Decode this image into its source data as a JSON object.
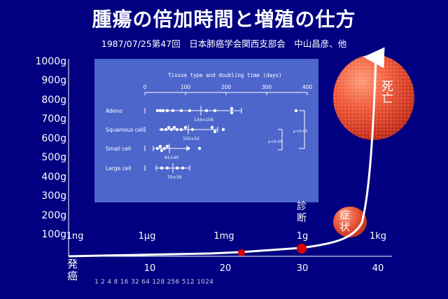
{
  "title": "腫瘍の倍加時間と増殖の仕方",
  "subtitle": "1987/07/25第47回　日本肺癌学会関西支部会　中山昌彦、他",
  "y_axis": {
    "labels": [
      "1000g",
      "900g",
      "800g",
      "700g",
      "600g",
      "500g",
      "400g",
      "300g",
      "200g",
      "100g"
    ]
  },
  "x_axis": {
    "ticks": [
      "10",
      "20",
      "30",
      "40"
    ],
    "origin_label": "発癌",
    "mass_labels": [
      "1ng",
      "1μg",
      "1mg",
      "1g",
      "1kg"
    ],
    "doubling_sequence": "1 2 4 8 16 32 64 128 256 512 1024"
  },
  "annotations": {
    "diagnosis": "診断",
    "symptom": "症状",
    "death": "死亡"
  },
  "inset_chart": {
    "title": "Tissue type and doubling time  (days)",
    "axis_ticks": [
      "0",
      "100",
      "200",
      "300",
      "400"
    ],
    "rows": [
      {
        "label": "Adeno",
        "stat": "134±104"
      },
      {
        "label": "Squamous cell",
        "stat": "102±52"
      },
      {
        "label": "Small cell",
        "stat": "61±40"
      },
      {
        "label": "Large cell",
        "stat": "70±39"
      }
    ],
    "significance": [
      "p<0.05",
      "p<0.05"
    ]
  },
  "colors": {
    "background": "#000080",
    "curve": "#ffffff",
    "marker": "#dd0000",
    "inset_bg": "#4d66cc"
  }
}
